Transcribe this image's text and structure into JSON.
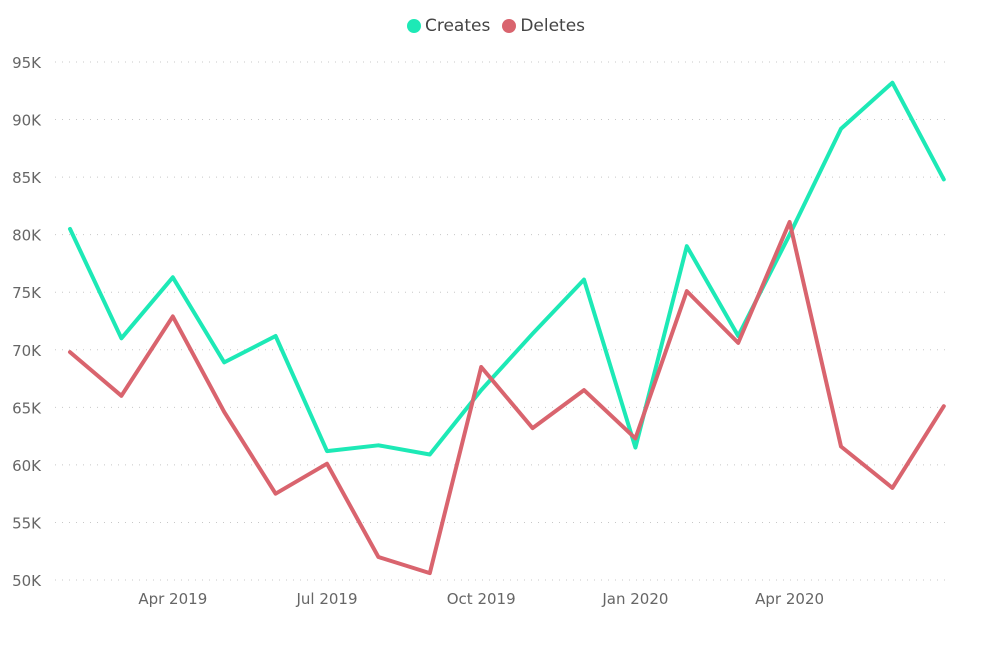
{
  "chart_data": {
    "type": "line",
    "title": "",
    "xlabel": "",
    "ylabel": "",
    "x": [
      "2019-02",
      "2019-03",
      "2019-04",
      "2019-05",
      "2019-06",
      "2019-07",
      "2019-08",
      "2019-09",
      "2019-10",
      "2019-11",
      "2019-12",
      "2020-01",
      "2020-02",
      "2020-03",
      "2020-04",
      "2020-05",
      "2020-06",
      "2020-07"
    ],
    "x_tick_labels": [
      {
        "x": "2019-04",
        "label": "Apr 2019"
      },
      {
        "x": "2019-07",
        "label": "Jul 2019"
      },
      {
        "x": "2019-10",
        "label": "Oct 2019"
      },
      {
        "x": "2020-01",
        "label": "Jan 2020"
      },
      {
        "x": "2020-04",
        "label": "Apr 2020"
      }
    ],
    "y_ticks": [
      50000,
      55000,
      60000,
      65000,
      70000,
      75000,
      80000,
      85000,
      90000,
      95000
    ],
    "y_tick_labels": [
      "50K",
      "55K",
      "60K",
      "65K",
      "70K",
      "75K",
      "80K",
      "85K",
      "90K",
      "95K"
    ],
    "ylim": [
      50000,
      95000
    ],
    "grid": "horizontal dotted",
    "legend_position": "top-center",
    "series": [
      {
        "name": "Creates",
        "color": "#1de9b6",
        "values": [
          80500,
          71000,
          76300,
          68900,
          71200,
          61200,
          61700,
          60900,
          66500,
          71400,
          76100,
          61500,
          79000,
          71200,
          80000,
          89200,
          93200,
          84800
        ]
      },
      {
        "name": "Deletes",
        "color": "#d9646e",
        "values": [
          69800,
          66000,
          72900,
          64600,
          57500,
          60100,
          52000,
          50600,
          68500,
          63200,
          66500,
          62300,
          75100,
          70600,
          81100,
          61600,
          58000,
          65100
        ]
      }
    ]
  }
}
